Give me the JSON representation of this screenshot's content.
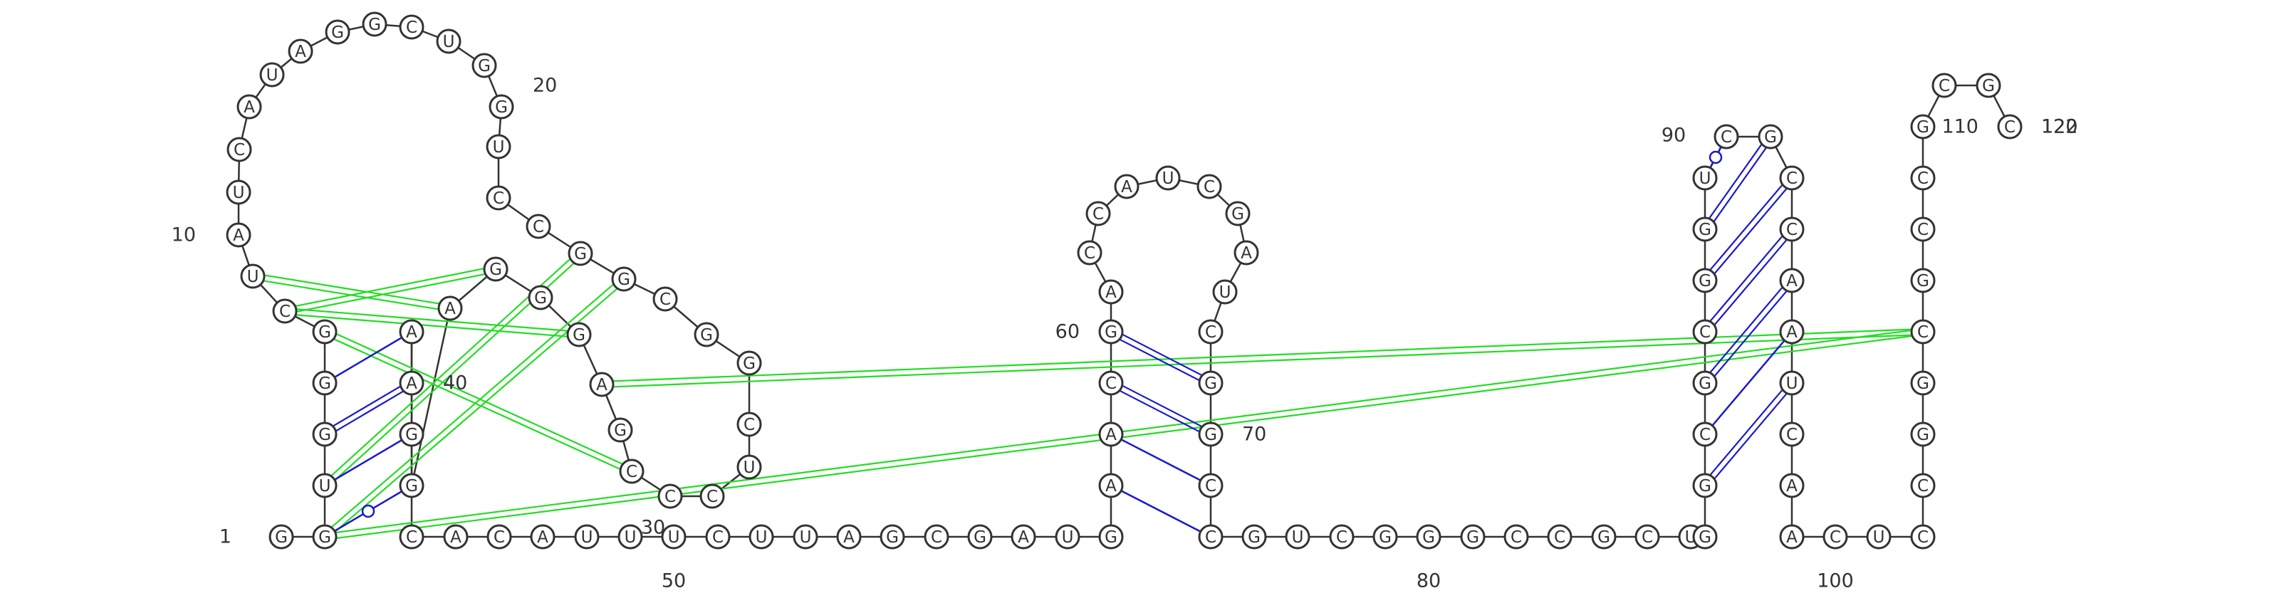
{
  "diagram": {
    "sequence": "GGUGGGCUAUCAUAGGCUGGUCCGGCGGCUCCCGAGGGAGGAACACAUUUCUUAGCGAUGAACGACCAUCGAUCGGCCGUCGGGCCGCUGGCGCGGUCGCCAAUCAACUCCGGCGCCGCGC",
    "labels": [
      "1",
      "10",
      "20",
      "30",
      "40",
      "50",
      "60",
      "70",
      "80",
      "90",
      "100",
      "110",
      "120",
      "122"
    ],
    "colors": {
      "canonical": "#1a1acc",
      "tertiary": "#22dd22",
      "outline": "#333333"
    }
  }
}
